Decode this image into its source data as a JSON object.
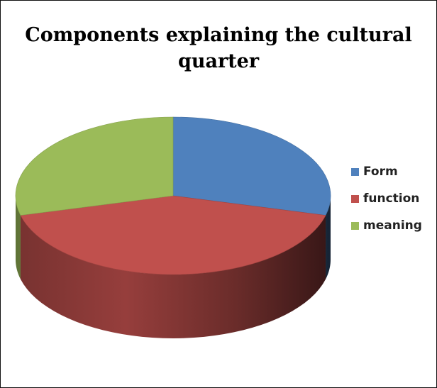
{
  "chart_data": {
    "type": "pie",
    "title": "Components explaining the cultural quarter",
    "three_d": true,
    "legend_position": "right",
    "slices": [
      {
        "label": "Form",
        "value": 29,
        "color": "#4f81bd"
      },
      {
        "label": "function",
        "value": 42,
        "color": "#c0504d"
      },
      {
        "label": "meaning",
        "value": 29,
        "color": "#9bbb59"
      }
    ]
  }
}
